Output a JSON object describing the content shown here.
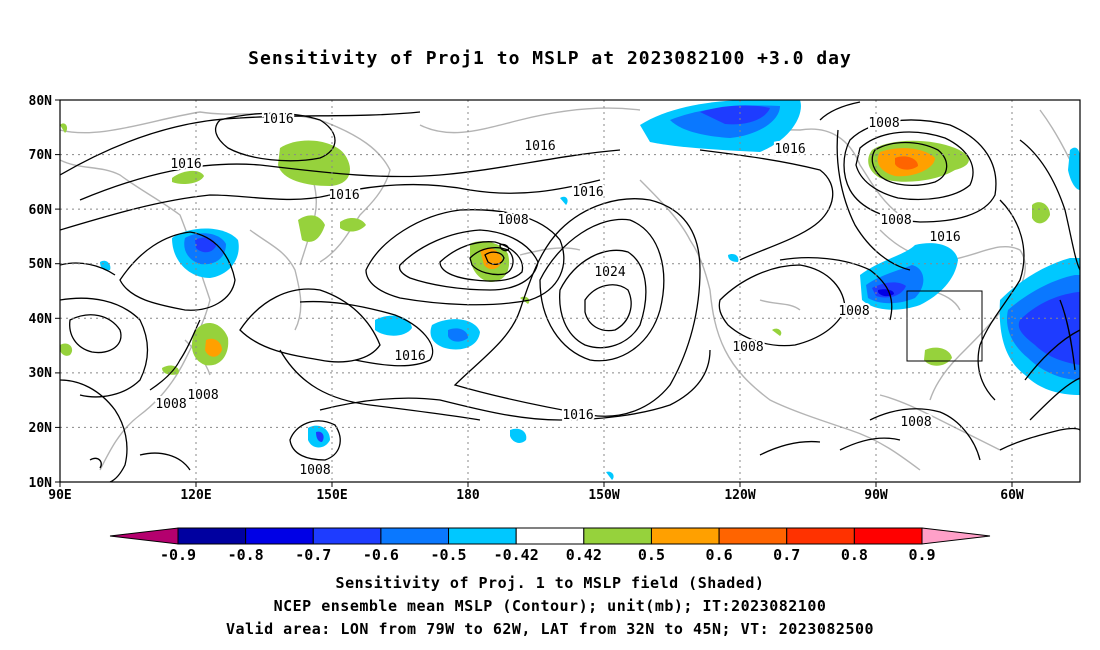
{
  "title": "Sensitivity of Proj1 to MSLP at 2023082100 +3.0 day",
  "lat_labels": [
    "80N",
    "70N",
    "60N",
    "50N",
    "40N",
    "30N",
    "20N",
    "10N"
  ],
  "lon_labels": [
    "90E",
    "120E",
    "150E",
    "180",
    "150W",
    "120W",
    "90W",
    "60W"
  ],
  "contour_labels": [
    {
      "text": "1016"
    },
    {
      "text": "1016"
    },
    {
      "text": "1016"
    },
    {
      "text": "1016"
    },
    {
      "text": "1016"
    },
    {
      "text": "1008"
    },
    {
      "text": "1024"
    },
    {
      "text": "1016"
    },
    {
      "text": "1016"
    },
    {
      "text": "1008"
    },
    {
      "text": "1008"
    },
    {
      "text": "1008"
    },
    {
      "text": "1008"
    },
    {
      "text": "1008"
    },
    {
      "text": "1016"
    },
    {
      "text": "1008"
    },
    {
      "text": "1008"
    },
    {
      "text": "1016"
    }
  ],
  "colorbar": {
    "labels": [
      "-0.9",
      "-0.8",
      "-0.7",
      "-0.6",
      "-0.5",
      "-0.42",
      "0.42",
      "0.5",
      "0.6",
      "0.7",
      "0.8",
      "0.9"
    ],
    "colors": [
      "#b4006e",
      "#0000a0",
      "#0000e6",
      "#1e3cff",
      "#0a78ff",
      "#00c8ff",
      "#ffffff",
      "#96d23c",
      "#ffa000",
      "#ff6400",
      "#ff3200",
      "#ff0000",
      "#ffa0c8"
    ]
  },
  "caption": {
    "line1": "Sensitivity of Proj. 1 to MSLP field (Shaded)",
    "line2": "NCEP ensemble mean MSLP (Contour); unit(mb); IT:2023082100",
    "line3": "Valid area: LON from 79W to 62W, LAT from 32N to 45N; VT: 2023082500"
  }
}
